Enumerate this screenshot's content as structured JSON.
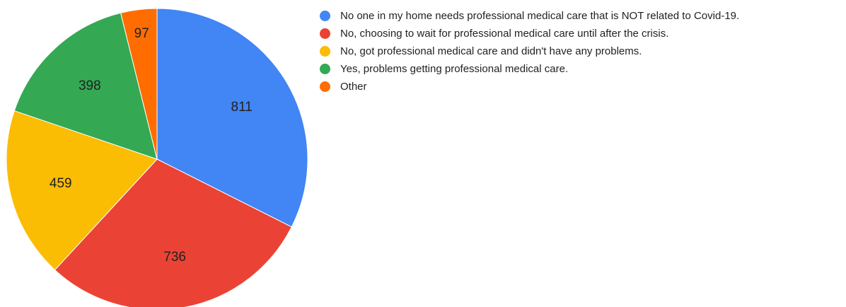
{
  "chart_data": {
    "type": "pie",
    "title": "",
    "start_angle_deg": 0,
    "direction": "clockwise",
    "legend_position": "right",
    "slices": [
      {
        "label": "No one in my home needs professional medical care that is NOT related to Covid-19.",
        "value": 811,
        "color": "#4285F4"
      },
      {
        "label": "No, choosing to wait for professional medical care until after the crisis.",
        "value": 736,
        "color": "#EA4335"
      },
      {
        "label": "No, got professional medical care and didn't have any problems.",
        "value": 459,
        "color": "#FBBC04"
      },
      {
        "label": "Yes, problems getting professional medical care.",
        "value": 398,
        "color": "#34A853"
      },
      {
        "label": "Other",
        "value": 97,
        "color": "#FF6D01"
      }
    ]
  }
}
